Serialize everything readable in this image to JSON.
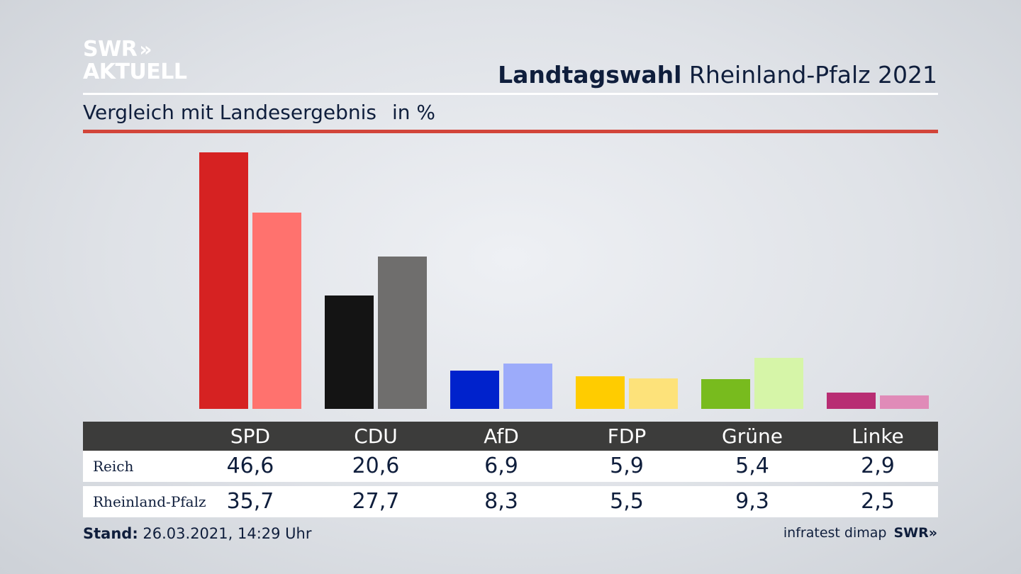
{
  "logo": {
    "line1": "SWR",
    "arrows": "»",
    "line2": "AKTUELL"
  },
  "header": {
    "title_bold": "Landtagswahl",
    "title_rest": " Rheinland-Pfalz 2021"
  },
  "subheader": {
    "text": "Vergleich mit Landesergebnis",
    "unit": "in %"
  },
  "table": {
    "rows": [
      {
        "label": "Reich"
      },
      {
        "label": "Rheinland-Pfalz"
      }
    ]
  },
  "footer": {
    "stand_label": "Stand:",
    "stand_value": " 26.03.2021, 14:29 Uhr",
    "source": "infratest dimap",
    "brand": "SWR»"
  },
  "chart_data": {
    "type": "bar",
    "categories": [
      "SPD",
      "CDU",
      "AfD",
      "FDP",
      "Grüne",
      "Linke"
    ],
    "series": [
      {
        "name": "Reich",
        "values": [
          46.6,
          20.6,
          6.9,
          5.9,
          5.4,
          2.9
        ],
        "colors": [
          "#d62222",
          "#141414",
          "#0022cc",
          "#ffcc00",
          "#78bb1e",
          "#b82d73"
        ]
      },
      {
        "name": "Rheinland-Pfalz",
        "values": [
          35.7,
          27.7,
          8.3,
          5.5,
          9.3,
          2.5
        ],
        "colors": [
          "#ff726e",
          "#6f6e6d",
          "#9cabfa",
          "#fde27a",
          "#d6f5a8",
          "#e08bb8"
        ]
      }
    ],
    "value_labels": [
      [
        "46,6",
        "20,6",
        "6,9",
        "5,9",
        "5,4",
        "2,9"
      ],
      [
        "35,7",
        "27,7",
        "8,3",
        "5,5",
        "9,3",
        "2,5"
      ]
    ],
    "ylim": [
      0,
      46.6
    ],
    "grid": false,
    "legend": "none"
  }
}
